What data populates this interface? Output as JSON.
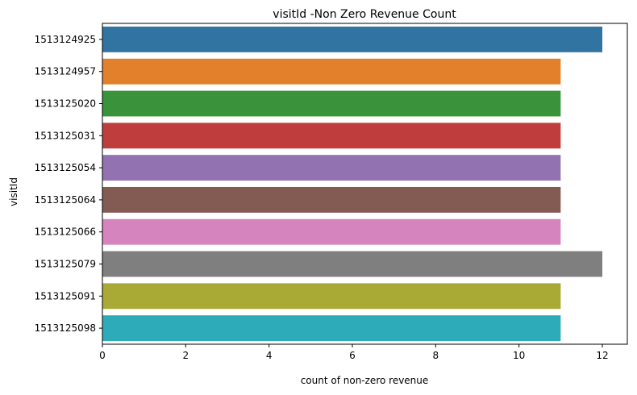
{
  "chart_data": {
    "type": "bar",
    "orientation": "horizontal",
    "title": "visitId -Non Zero Revenue Count",
    "xlabel": "count of non-zero revenue",
    "ylabel": "visitId",
    "categories": [
      "1513124925",
      "1513124957",
      "1513125020",
      "1513125031",
      "1513125054",
      "1513125064",
      "1513125066",
      "1513125079",
      "1513125091",
      "1513125098"
    ],
    "values": [
      12,
      11,
      11,
      11,
      11,
      11,
      11,
      12,
      11,
      11
    ],
    "colors": [
      "#3274a1",
      "#e1812c",
      "#3a923a",
      "#c03d3e",
      "#9372b2",
      "#845b53",
      "#d684bd",
      "#7f7f7f",
      "#a9aa35",
      "#2eabb8"
    ],
    "xlim": [
      0,
      12.6
    ],
    "xticks": [
      0,
      2,
      4,
      6,
      8,
      10,
      12
    ],
    "grid": false,
    "legend": "none"
  }
}
